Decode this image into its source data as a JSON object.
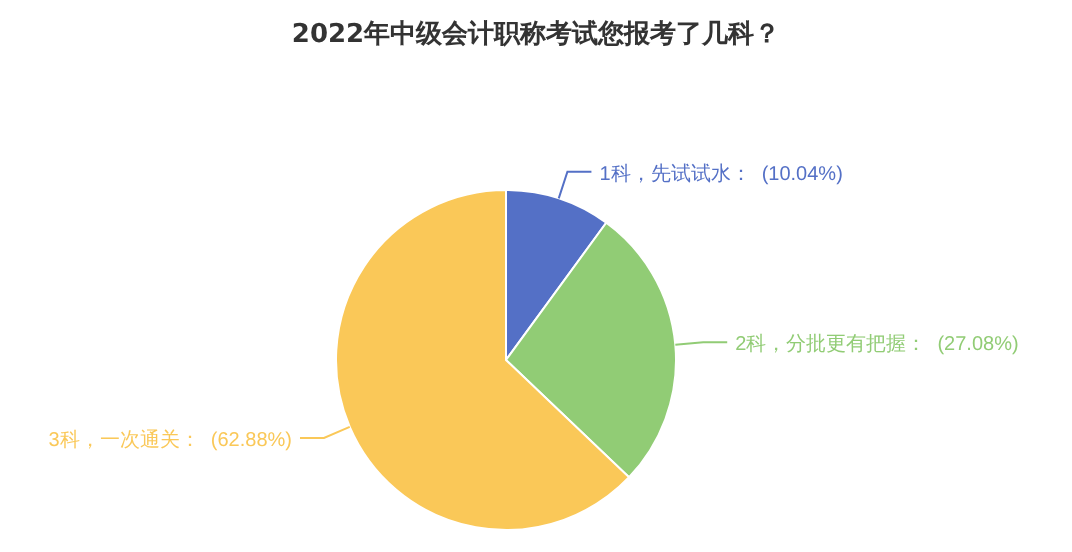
{
  "chart_data": {
    "type": "pie",
    "title": "2022年中级会计职称考试您报考了几科？",
    "categories": [
      "1科，先试试水",
      "2科，分批更有把握",
      "3科，一次通关"
    ],
    "values": [
      10.04,
      27.08,
      62.88
    ],
    "colors": [
      "#5470c6",
      "#91cc75",
      "#fac858"
    ],
    "value_labels": [
      "(10.04%)",
      "(27.08%)",
      "(62.88%)"
    ],
    "legend": false
  }
}
